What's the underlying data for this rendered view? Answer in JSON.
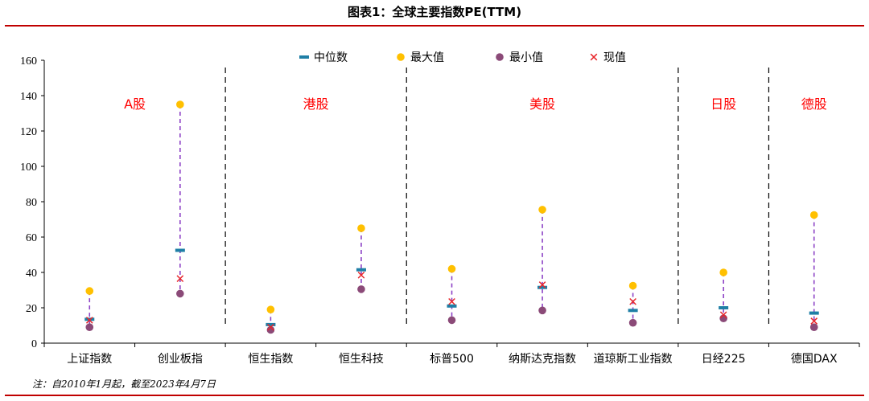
{
  "title": "图表1：全球主要指数PE(TTM)",
  "note": "注：自2010年1月起，截至2023年4月7日",
  "chart_data": {
    "type": "scatter",
    "categories": [
      "上证指数",
      "创业板指",
      "恒生指数",
      "恒生科技",
      "标普500",
      "纳斯达克指数",
      "道琼斯工业指数",
      "日经225",
      "德国DAX"
    ],
    "series": [
      {
        "name": "中位数",
        "marker": "dash",
        "color": "#1f7fa6",
        "values": [
          13.5,
          52.5,
          10.5,
          41.5,
          21,
          31.5,
          18.5,
          20,
          17
        ]
      },
      {
        "name": "最大值",
        "marker": "circle",
        "color": "#ffc000",
        "values": [
          29.5,
          135,
          19,
          65,
          42,
          75.5,
          32.5,
          40,
          72.5
        ]
      },
      {
        "name": "最小值",
        "marker": "circle",
        "color": "#8b4a78",
        "values": [
          9,
          28,
          7.5,
          30.5,
          13,
          18.5,
          11.5,
          14,
          9
        ]
      },
      {
        "name": "现值",
        "marker": "cross",
        "color": "#e8262b",
        "values": [
          13,
          36.5,
          9,
          38.5,
          23.5,
          33,
          23.5,
          16,
          12.5
        ]
      }
    ],
    "ylim": [
      0,
      160
    ],
    "yticks": [
      0,
      20,
      40,
      60,
      80,
      100,
      120,
      140,
      160
    ],
    "groups": [
      {
        "label": "A股",
        "from": 0,
        "to": 1
      },
      {
        "label": "港股",
        "from": 2,
        "to": 3
      },
      {
        "label": "美股",
        "from": 4,
        "to": 6
      },
      {
        "label": "日股",
        "from": 7,
        "to": 7
      },
      {
        "label": "德股",
        "from": 8,
        "to": 8
      }
    ],
    "range_line_color": "#8e44c6",
    "group_label_color": "#ff0000",
    "legend_position": "top"
  }
}
